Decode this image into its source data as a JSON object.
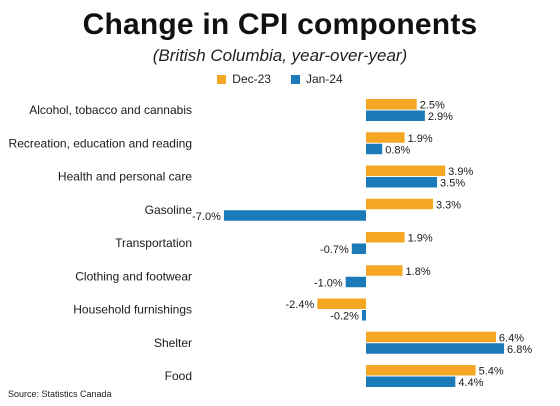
{
  "chart_data": {
    "type": "bar",
    "orientation": "horizontal",
    "title": "Change in CPI components",
    "subtitle": "(British Columbia, year-over-year)",
    "categories": [
      "Alcohol, tobacco and cannabis",
      "Recreation, education and reading",
      "Health and personal care",
      "Gasoline",
      "Transportation",
      "Clothing and footwear",
      "Household furnishings",
      "Shelter",
      "Food"
    ],
    "series": [
      {
        "name": "Dec-23",
        "color": "#F5A623",
        "values": [
          2.5,
          1.9,
          3.9,
          3.3,
          1.9,
          1.8,
          -2.4,
          6.4,
          5.4
        ],
        "labels": [
          "2.5%",
          "1.9%",
          "3.9%",
          "3.3%",
          "1.9%",
          "1.8%",
          "-2.4%",
          "6.4%",
          "5.4%"
        ]
      },
      {
        "name": "Jan-24",
        "color": "#1B7BB8",
        "values": [
          2.9,
          0.8,
          3.5,
          -7.0,
          -0.7,
          -1.0,
          -0.2,
          6.8,
          4.4
        ],
        "labels": [
          "2.9%",
          "0.8%",
          "3.5%",
          "-7.0%",
          "-0.7%",
          "-1.0%",
          "-0.2%",
          "6.8%",
          "4.4%"
        ]
      }
    ],
    "xlim": [
      -7.0,
      6.8
    ],
    "xlabel": "",
    "ylabel": "",
    "grid": false,
    "legend": "top-center"
  },
  "source": "Source: Statistics Canada"
}
